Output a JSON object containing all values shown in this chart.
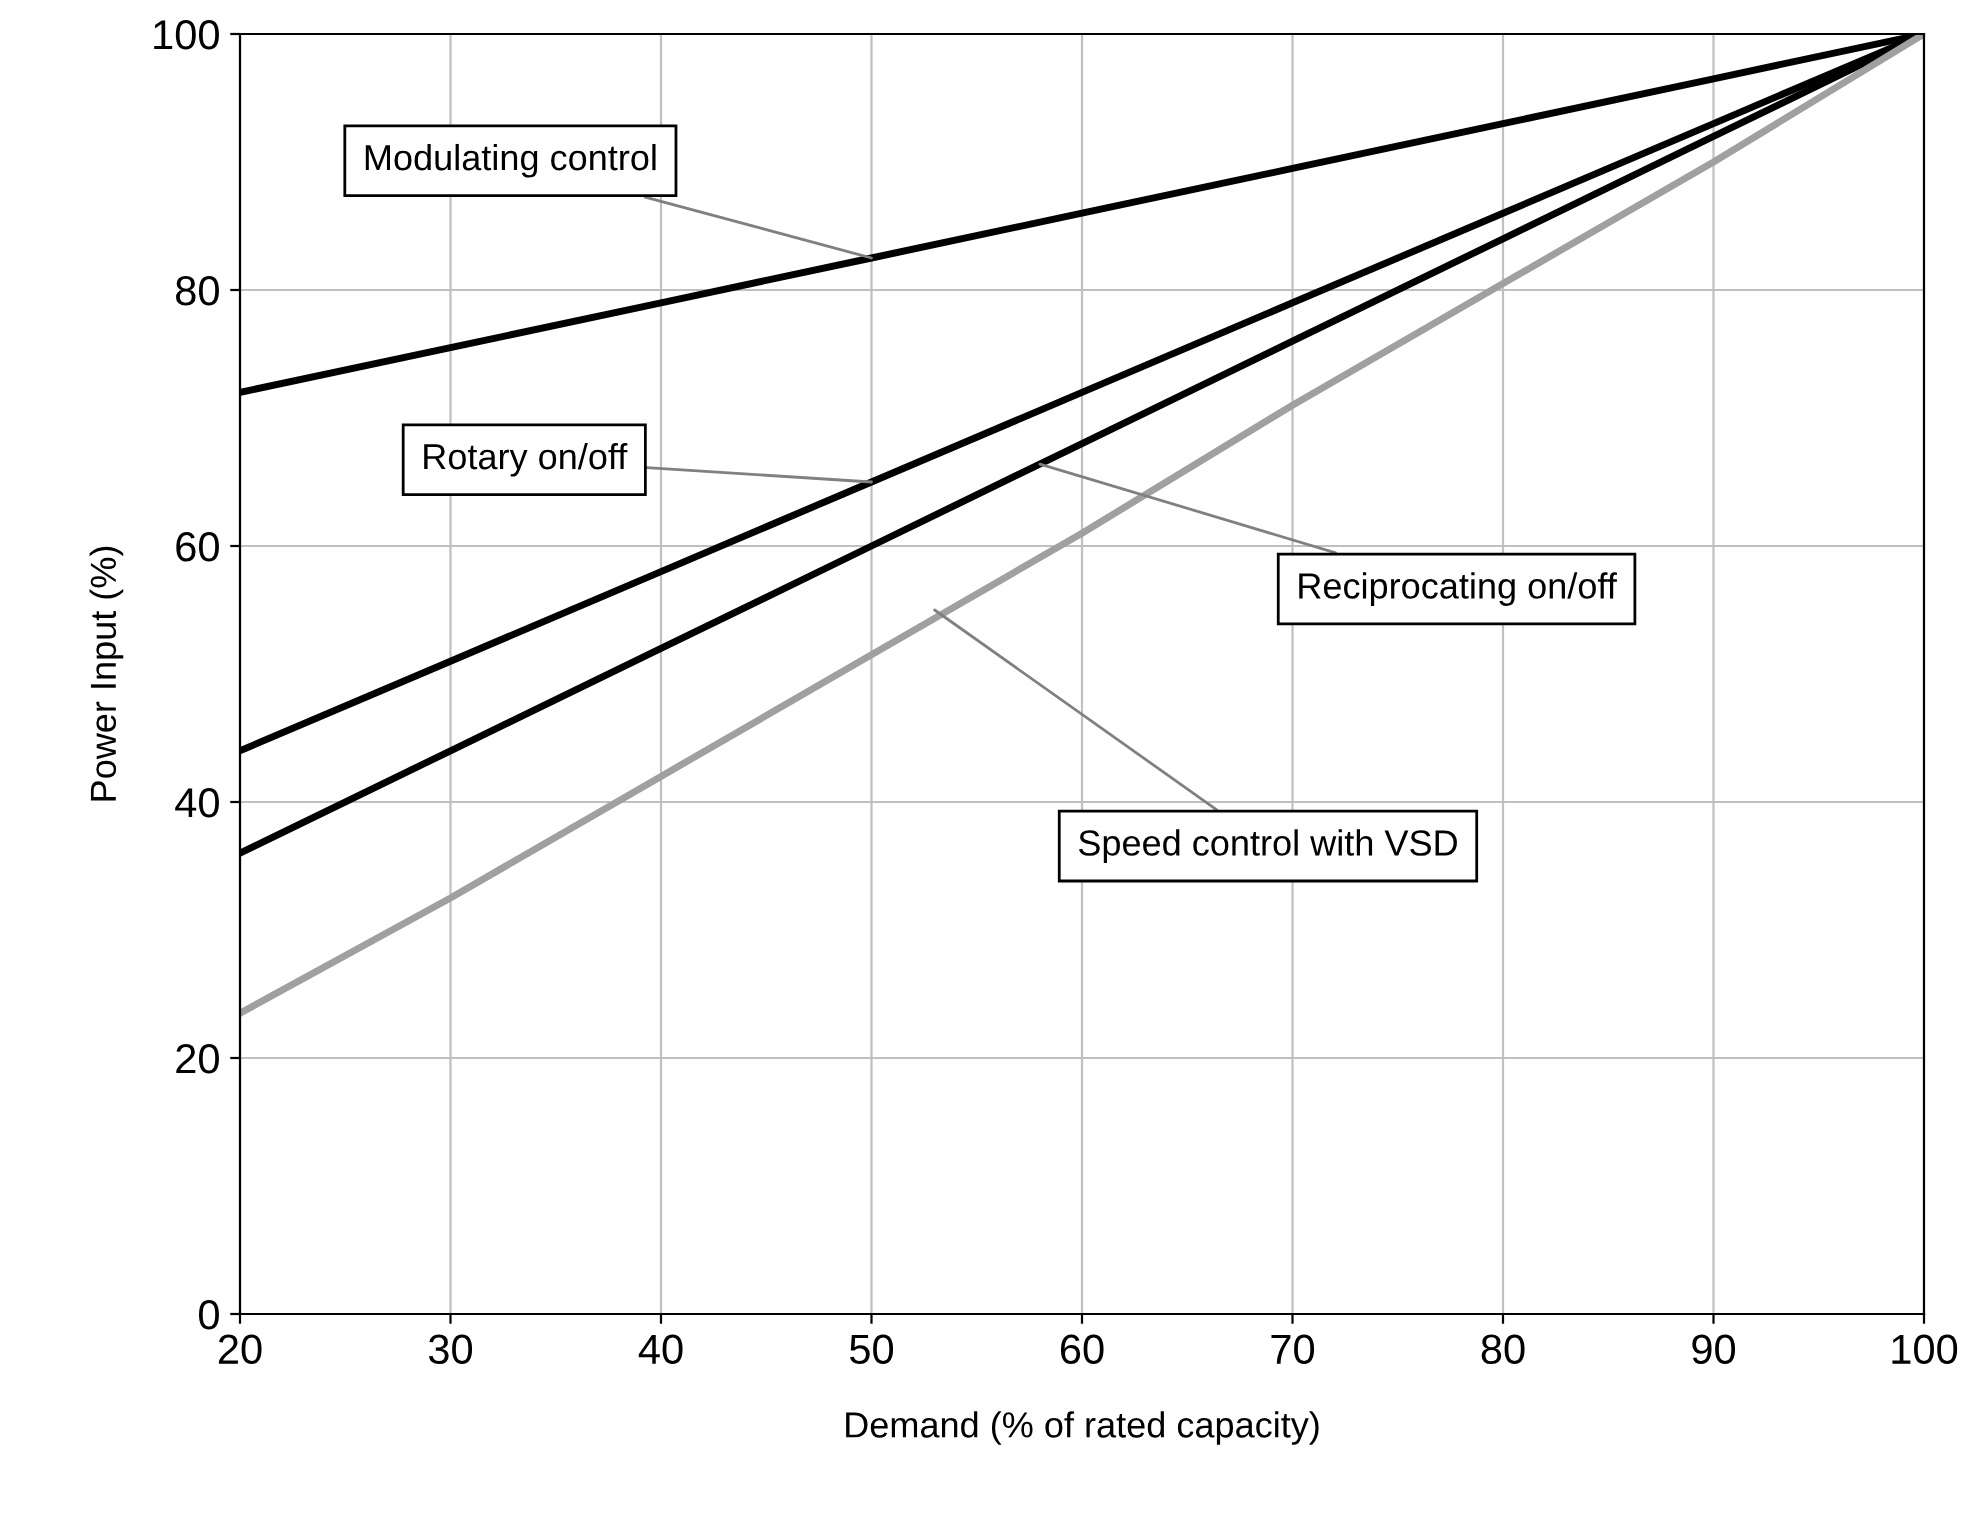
{
  "chart_data": {
    "type": "line",
    "xlabel": "Demand (% of rated capacity)",
    "ylabel": "Power Input (%)",
    "x": [
      20,
      30,
      40,
      50,
      60,
      70,
      80,
      90,
      100
    ],
    "series": [
      {
        "color": "#000000",
        "values": [
          72,
          75.5,
          79,
          82.5,
          86,
          89.5,
          93,
          96.5,
          100
        ]
      },
      {
        "color": "#000000",
        "values": [
          44,
          51,
          58,
          65,
          72,
          79,
          86,
          93,
          100
        ]
      },
      {
        "color": "#000000",
        "values": [
          36,
          44,
          52,
          60,
          68,
          76,
          84,
          92,
          100
        ]
      },
      {
        "color": "#a0a0a0",
        "values": [
          23.5,
          32.5,
          42,
          51.5,
          61,
          71,
          80.5,
          90,
          100
        ]
      }
    ],
    "annotations": [
      {
        "text": "Modulating control",
        "x": 50,
        "y": 82.5
      },
      {
        "text": "Rotary on/off",
        "x": 50,
        "y": 65
      },
      {
        "text": "Reciprocating on/off",
        "x": 58,
        "y": 66.4
      },
      {
        "text": "Speed control with VSD",
        "x": 53,
        "y": 55
      }
    ],
    "xlim": [
      20,
      100
    ],
    "ylim": [
      0,
      100
    ],
    "xticks": [
      20,
      30,
      40,
      50,
      60,
      70,
      80,
      90,
      100
    ],
    "yticks": [
      0,
      20,
      40,
      60,
      80,
      100
    ],
    "grid": true,
    "line_style": "solid",
    "marker": "none"
  }
}
